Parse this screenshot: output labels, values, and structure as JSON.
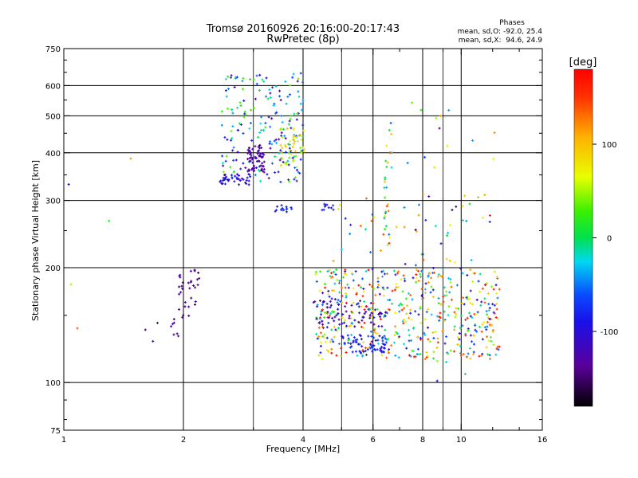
{
  "chart_data": {
    "type": "scatter",
    "title": "Tromsø 20160926 20:16:00-20:17:43",
    "subtitle": "RwPretec (8p)",
    "xlabel": "Frequency [MHz]",
    "ylabel": "Stationary phase Virtual Height [km]",
    "x_scale": "log",
    "y_scale": "log",
    "xlim": [
      1,
      16
    ],
    "ylim": [
      75,
      750
    ],
    "x_ticks": [
      1,
      2,
      4,
      6,
      8,
      10,
      16
    ],
    "x_tick_labels": [
      "1",
      "2",
      "4",
      "6",
      "8",
      "10",
      "16"
    ],
    "x_minor_ticks": [
      3,
      5,
      7,
      9,
      12,
      14
    ],
    "y_ticks": [
      75,
      100,
      200,
      300,
      400,
      500,
      600,
      750
    ],
    "y_tick_labels": [
      "75",
      "100",
      "200",
      "300",
      "400",
      "500",
      "600",
      "750"
    ],
    "y_minor_ticks": [
      80,
      90,
      150,
      250,
      350,
      450,
      550,
      650,
      700
    ],
    "grid": true,
    "phase_info": {
      "title": "Phases",
      "line1": "mean, sd,O: -92.0, 25.4",
      "line2": "mean, sd,X:  94.6, 24.9"
    },
    "colorbar": {
      "label": "[deg]",
      "range": [
        -180,
        180
      ],
      "ticks": [
        100,
        0,
        -100
      ],
      "tick_labels": [
        "100",
        "0",
        "-100"
      ]
    },
    "clusters": [
      {
        "x": [
          2.5,
          4.0
        ],
        "y": [
          335,
          650
        ],
        "phase": [
          -140,
          40
        ],
        "n": 190
      },
      {
        "x": [
          2.9,
          3.2
        ],
        "y": [
          355,
          420
        ],
        "phase": [
          -150,
          -115
        ],
        "n": 60
      },
      {
        "x": [
          3.5,
          4.05
        ],
        "y": [
          365,
          470
        ],
        "phase": [
          30,
          110
        ],
        "n": 45
      },
      {
        "x": [
          2.45,
          2.95
        ],
        "y": [
          330,
          352
        ],
        "phase": [
          -125,
          -95
        ],
        "n": 40
      },
      {
        "x": [
          3.4,
          3.75
        ],
        "y": [
          280,
          292
        ],
        "phase": [
          -110,
          -80
        ],
        "n": 14
      },
      {
        "x": [
          4.4,
          4.8
        ],
        "y": [
          283,
          295
        ],
        "phase": [
          -115,
          -75
        ],
        "n": 10
      },
      {
        "x": [
          1.95,
          2.2
        ],
        "y": [
          148,
          198
        ],
        "phase": [
          -160,
          -120
        ],
        "n": 32
      },
      {
        "x": [
          1.55,
          2.0
        ],
        "y": [
          128,
          148
        ],
        "phase": [
          -160,
          -120
        ],
        "n": 10
      },
      {
        "x": [
          4.3,
          12.5
        ],
        "y": [
          115,
          200
        ],
        "phase": [
          -130,
          180
        ],
        "n": 520
      },
      {
        "x": [
          5.0,
          6.5
        ],
        "y": [
          120,
          133
        ],
        "phase": [
          -110,
          -70
        ],
        "n": 60
      },
      {
        "x": [
          4.2,
          6.5
        ],
        "y": [
          140,
          165
        ],
        "phase": [
          -150,
          -100
        ],
        "n": 60
      },
      {
        "x": [
          4.5,
          12
        ],
        "y": [
          200,
          310
        ],
        "phase": [
          -100,
          170
        ],
        "n": 45
      },
      {
        "x": [
          6.4,
          6.7
        ],
        "y": [
          240,
          620
        ],
        "phase": [
          -80,
          170
        ],
        "n": 25
      },
      {
        "x": [
          7.0,
          12.5
        ],
        "y": [
          95,
          620
        ],
        "phase": [
          -160,
          170
        ],
        "n": 40
      },
      {
        "x": [
          1.0,
          1.5
        ],
        "y": [
          130,
          400
        ],
        "phase": [
          -110,
          160
        ],
        "n": 5
      }
    ]
  }
}
